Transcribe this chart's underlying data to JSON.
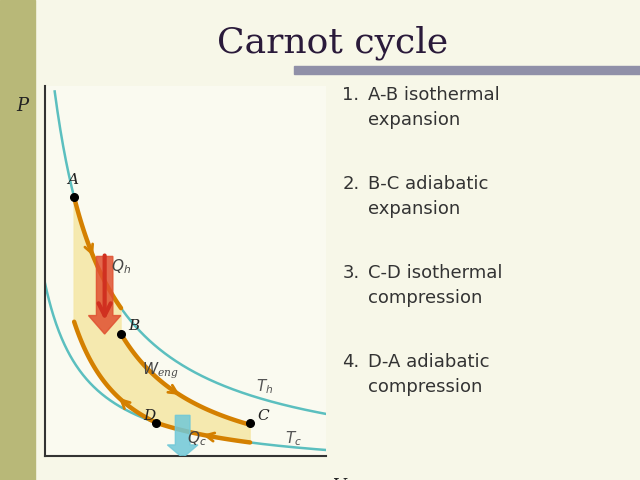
{
  "title": "Carnot cycle",
  "title_fontsize": 26,
  "title_color": "#2a1a3a",
  "background_color": "#f7f7e8",
  "plot_bg": "#fafaf0",
  "header_bar_color": "#9090a8",
  "left_bar_color": "#b8b878",
  "points": {
    "A": [
      1.2,
      7.5
    ],
    "B": [
      2.0,
      3.8
    ],
    "C": [
      4.2,
      1.4
    ],
    "D": [
      2.6,
      1.4
    ]
  },
  "gamma": 1.4,
  "V_range": [
    0.7,
    5.5
  ],
  "P_range": [
    0.5,
    10.5
  ],
  "isotherm_color": "#5bbfbf",
  "cycle_color": "#d48000",
  "fill_color": "#f5e8a8",
  "arrow_Qh_color_top": "#f09070",
  "arrow_Qh_color_bot": "#d04020",
  "arrow_Qc_color_top": "#a8dce8",
  "arrow_Qc_color_bot": "#70c0d0",
  "legend_items": [
    [
      "1.",
      "A-B isothermal\nexpansion"
    ],
    [
      "2.",
      "B-C adiabatic\nexpansion"
    ],
    [
      "3.",
      "C-D isothermal\ncompression"
    ],
    [
      "4.",
      "D-A adiabatic\ncompression"
    ]
  ],
  "legend_fontsize": 13,
  "axis_label_fontsize": 13
}
